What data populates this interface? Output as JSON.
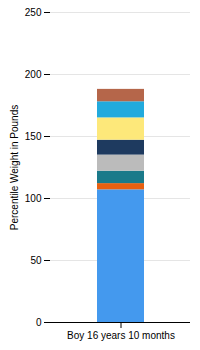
{
  "chart_data": {
    "type": "bar",
    "stacked": true,
    "categories": [
      "Boy 16 years 10 months"
    ],
    "ylabel": "Percentile Weight in Pounds",
    "series": [
      {
        "color": "#4499ee",
        "values": [
          107
        ]
      },
      {
        "color": "#e86010",
        "values": [
          5
        ]
      },
      {
        "color": "#1a7a8a",
        "values": [
          10
        ]
      },
      {
        "color": "#bbbbbb",
        "values": [
          13
        ]
      },
      {
        "color": "#1e3a5f",
        "values": [
          12
        ]
      },
      {
        "color": "#fde87a",
        "values": [
          18
        ]
      },
      {
        "color": "#22aadd",
        "values": [
          13
        ]
      },
      {
        "color": "#b5664a",
        "values": [
          10
        ]
      }
    ],
    "ylim": [
      0,
      250
    ],
    "yticks": [
      0,
      50,
      100,
      150,
      200,
      250
    ],
    "grid": true
  }
}
